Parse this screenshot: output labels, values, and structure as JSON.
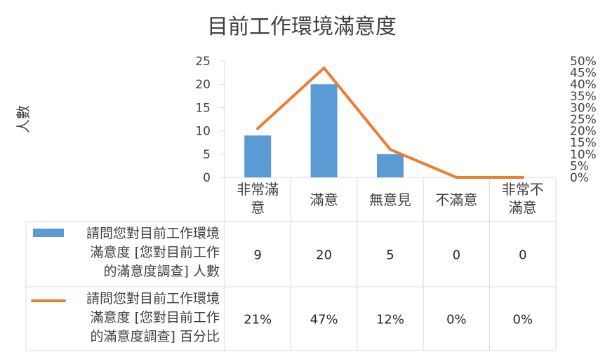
{
  "chart_data": {
    "type": "bar",
    "title": "目前工作環境滿意度",
    "ylabel": "人數",
    "ylim": [
      0,
      25
    ],
    "y_ticks": [
      0,
      5,
      10,
      15,
      20,
      25
    ],
    "y2lim": [
      0,
      0.5
    ],
    "y2_ticks": [
      "0%",
      "5%",
      "10%",
      "15%",
      "20%",
      "25%",
      "30%",
      "35%",
      "40%",
      "45%",
      "50%"
    ],
    "categories": [
      [
        "非常滿",
        "意"
      ],
      [
        "滿意"
      ],
      [
        "無意見"
      ],
      [
        "不滿意"
      ],
      [
        "非常不",
        "滿意"
      ]
    ],
    "series": [
      {
        "name_lines": [
          "請問您對目前工作環境",
          "滿意度 [您對目前工作",
          "的滿意度調查] 人數"
        ],
        "type": "bar",
        "axis": "left",
        "values": [
          9,
          20,
          5,
          0,
          0
        ],
        "labels": [
          "9",
          "20",
          "5",
          "0",
          "0"
        ],
        "color": "#5B9BD5"
      },
      {
        "name_lines": [
          "請問您對目前工作環境",
          "滿意度 [您對目前工作",
          "的滿意度調查] 百分比"
        ],
        "type": "line",
        "axis": "right",
        "values": [
          0.21,
          0.47,
          0.12,
          0,
          0
        ],
        "labels": [
          "21%",
          "47%",
          "12%",
          "0%",
          "0%"
        ],
        "color": "#ED7D31"
      }
    ],
    "legend": "data-table",
    "grid": false
  }
}
